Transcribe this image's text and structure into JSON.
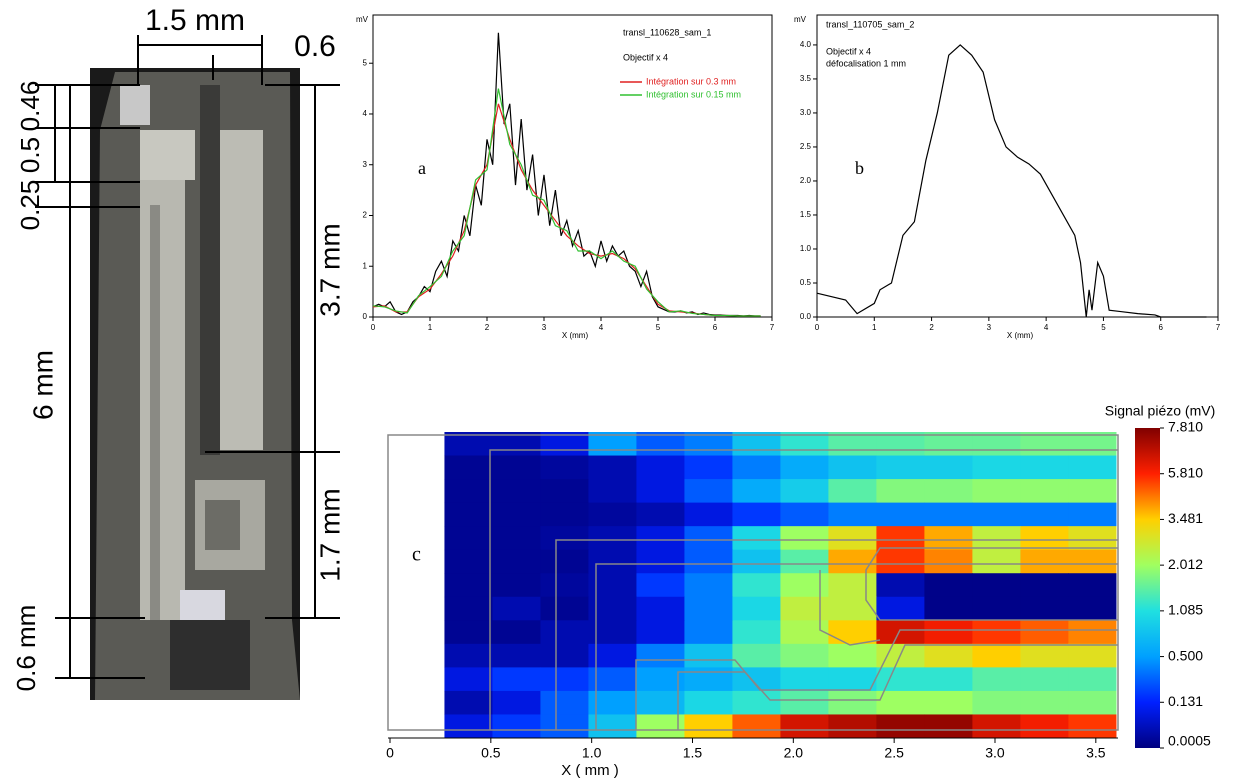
{
  "photo": {
    "labels": [
      "1.5 mm",
      "0.6",
      "0.46",
      "0.5",
      "0.25",
      "3.7 mm",
      "6 mm",
      "1.7 mm",
      "0.6 mm"
    ]
  },
  "chart_data": [
    {
      "type": "line",
      "y_label": "mV",
      "x_label": "X (mm)",
      "annotations": [
        "transl_110628_sam_1",
        "Objectif x 4",
        "a"
      ],
      "xlim": [
        0,
        7
      ],
      "xticks": [
        0,
        1,
        2,
        3,
        4,
        5,
        6,
        7
      ],
      "ylim": [
        0,
        5.95
      ],
      "yticks": [
        0,
        1,
        2,
        3,
        4,
        5
      ],
      "series": [
        {
          "color": "#000000",
          "x": [
            0,
            0.1,
            0.2,
            0.3,
            0.4,
            0.5,
            0.6,
            0.7,
            0.8,
            0.9,
            1.0,
            1.1,
            1.2,
            1.3,
            1.4,
            1.5,
            1.6,
            1.7,
            1.8,
            1.9,
            2.0,
            2.1,
            2.2,
            2.3,
            2.4,
            2.5,
            2.6,
            2.7,
            2.8,
            2.9,
            3.0,
            3.1,
            3.2,
            3.3,
            3.4,
            3.5,
            3.6,
            3.7,
            3.8,
            3.9,
            4.0,
            4.1,
            4.2,
            4.3,
            4.4,
            4.5,
            4.6,
            4.7,
            4.8,
            4.9,
            5.0,
            5.1,
            5.2,
            5.3,
            5.4,
            5.5,
            5.6,
            5.7,
            5.8,
            5.9,
            6.0,
            6.1,
            6.2,
            6.3,
            6.4,
            6.5,
            6.6,
            6.7,
            6.8
          ],
          "values": [
            0.2,
            0.25,
            0.2,
            0.3,
            0.1,
            0.05,
            0.1,
            0.3,
            0.4,
            0.6,
            0.5,
            0.9,
            1.1,
            0.8,
            1.5,
            1.3,
            2.0,
            1.6,
            2.6,
            2.2,
            3.5,
            3.0,
            5.6,
            3.8,
            4.2,
            2.6,
            3.9,
            2.5,
            3.2,
            2.0,
            2.8,
            1.8,
            2.5,
            1.6,
            1.9,
            1.4,
            1.7,
            1.2,
            1.3,
            1.0,
            1.5,
            1.1,
            1.4,
            1.2,
            1.3,
            1.0,
            0.9,
            0.6,
            0.9,
            0.4,
            0.2,
            0.15,
            0.1,
            0.1,
            0.12,
            0.08,
            0.1,
            0.05,
            0.08,
            0.05,
            0.04,
            0.04,
            0.03,
            0.03,
            0.03,
            0.02,
            0.03,
            0.02,
            0.02
          ]
        },
        {
          "name": "Intégration sur 0.3 mm",
          "color": "#e02020",
          "x": [
            0,
            0.2,
            0.4,
            0.6,
            0.8,
            1.0,
            1.2,
            1.4,
            1.6,
            1.8,
            2.0,
            2.2,
            2.4,
            2.6,
            2.8,
            3.0,
            3.2,
            3.4,
            3.6,
            3.8,
            4.0,
            4.2,
            4.4,
            4.6,
            4.8,
            5.0,
            5.2,
            5.4,
            5.6,
            5.8,
            6.0,
            6.2,
            6.4,
            6.6,
            6.8
          ],
          "values": [
            0.2,
            0.22,
            0.1,
            0.1,
            0.4,
            0.55,
            0.85,
            1.2,
            1.7,
            2.6,
            3.0,
            4.2,
            3.5,
            2.9,
            2.5,
            2.2,
            1.9,
            1.6,
            1.4,
            1.25,
            1.2,
            1.25,
            1.15,
            0.95,
            0.6,
            0.25,
            0.12,
            0.1,
            0.08,
            0.05,
            0.03,
            0.03,
            0.02,
            0.02,
            0.02
          ]
        },
        {
          "name": "Intégration sur 0.15 mm",
          "color": "#30c030",
          "x": [
            0,
            0.2,
            0.4,
            0.6,
            0.8,
            1.0,
            1.2,
            1.4,
            1.6,
            1.8,
            2.0,
            2.2,
            2.4,
            2.6,
            2.8,
            3.0,
            3.2,
            3.4,
            3.6,
            3.8,
            4.0,
            4.2,
            4.4,
            4.6,
            4.8,
            5.0,
            5.2,
            5.4,
            5.6,
            5.8,
            6.0,
            6.2,
            6.4,
            6.6,
            6.8
          ],
          "values": [
            0.22,
            0.2,
            0.12,
            0.08,
            0.42,
            0.6,
            0.8,
            1.3,
            1.6,
            2.7,
            2.9,
            4.5,
            3.4,
            3.0,
            2.4,
            2.3,
            1.8,
            1.7,
            1.3,
            1.3,
            1.15,
            1.3,
            1.1,
            1.0,
            0.55,
            0.3,
            0.1,
            0.12,
            0.07,
            0.05,
            0.03,
            0.03,
            0.02,
            0.02,
            0.02
          ]
        }
      ]
    },
    {
      "type": "line",
      "y_label": "mV",
      "x_label": "X (mm)",
      "annotations": [
        "transl_110705_sam_2",
        "Objectif x 4",
        "défocalisation 1 mm",
        "b"
      ],
      "xlim": [
        0,
        7
      ],
      "xticks": [
        0,
        1,
        2,
        3,
        4,
        5,
        6,
        7
      ],
      "ylim": [
        0,
        4.44
      ],
      "yticks": [
        {
          "value": 0,
          "label": "0.0"
        },
        0.5,
        {
          "value": 1,
          "label": "1.0"
        },
        1.5,
        {
          "value": 2,
          "label": "2.0"
        },
        2.5,
        {
          "value": 3,
          "label": "3.0"
        },
        3.5,
        {
          "value": 4,
          "label": "4.0"
        }
      ],
      "series": [
        {
          "color": "#000000",
          "x": [
            0,
            0.5,
            0.7,
            1.0,
            1.1,
            1.3,
            1.5,
            1.7,
            1.9,
            2.1,
            2.3,
            2.5,
            2.7,
            2.9,
            3.1,
            3.3,
            3.5,
            3.7,
            3.9,
            4.1,
            4.3,
            4.5,
            4.6,
            4.7,
            4.75,
            4.8,
            4.9,
            5.0,
            5.1,
            5.3,
            5.6,
            5.9,
            6.0,
            6.5,
            6.8
          ],
          "values": [
            0.35,
            0.25,
            0.05,
            0.2,
            0.4,
            0.5,
            1.2,
            1.4,
            2.3,
            3.0,
            3.85,
            4.0,
            3.85,
            3.6,
            2.9,
            2.5,
            2.35,
            2.25,
            2.1,
            1.8,
            1.5,
            1.2,
            0.8,
            0.0,
            0.4,
            0.1,
            0.8,
            0.6,
            0.1,
            0.08,
            0.05,
            0.03,
            0.0,
            0.0,
            0.0
          ]
        }
      ]
    },
    {
      "type": "heatmap",
      "title": "Signal piézo (mV)",
      "x_label": "X ( mm )",
      "annotations": [
        "c"
      ],
      "xlim": [
        0,
        3.61
      ],
      "xticks": [
        0,
        0.5,
        {
          "value": 1,
          "label": "1.0"
        },
        1.5,
        {
          "value": 2,
          "label": "2.0"
        },
        2.5,
        {
          "value": 3,
          "label": "3.0"
        },
        3.5
      ],
      "xbins": [
        0.27,
        0.508,
        0.746,
        0.984,
        1.222,
        1.46,
        1.698,
        1.936,
        2.174,
        2.412,
        2.65,
        2.888,
        3.126,
        3.364,
        3.6
      ],
      "zticks": [
        0.0005,
        0.131,
        {
          "value": 0.5,
          "label": "0.500"
        },
        1.085,
        2.012,
        3.481,
        {
          "value": 5.81,
          "label": "5.810"
        },
        {
          "value": 7.81,
          "label": "7.810"
        }
      ],
      "colormap": [
        "#000080",
        "#0020ff",
        "#00a0ff",
        "#20e0e0",
        "#a0ff60",
        "#ffd000",
        "#ff2000",
        "#800000"
      ],
      "z": [
        [
          0.05,
          0.05,
          0.1,
          0.5,
          0.3,
          0.4,
          0.8,
          1.2,
          1.5,
          1.5,
          1.6,
          1.6,
          1.7,
          1.7
        ],
        [
          0.02,
          0.02,
          0.03,
          0.05,
          0.1,
          0.2,
          0.4,
          0.6,
          0.8,
          0.9,
          0.9,
          1.0,
          1.0,
          1.0
        ],
        [
          0.02,
          0.02,
          0.02,
          0.05,
          0.1,
          0.3,
          0.6,
          0.9,
          1.5,
          1.8,
          1.8,
          1.9,
          1.9,
          1.9
        ],
        [
          0.02,
          0.02,
          0.02,
          0.03,
          0.05,
          0.1,
          0.2,
          0.3,
          0.4,
          0.4,
          0.4,
          0.4,
          0.4,
          0.4
        ],
        [
          0.02,
          0.02,
          0.03,
          0.05,
          0.1,
          0.3,
          1.0,
          2.0,
          3.0,
          5.5,
          4.0,
          2.5,
          3.5,
          3.0
        ],
        [
          0.02,
          0.02,
          0.02,
          0.05,
          0.1,
          0.3,
          0.8,
          1.5,
          4.0,
          5.5,
          4.5,
          2.5,
          4.0,
          4.0
        ],
        [
          0.02,
          0.02,
          0.03,
          0.05,
          0.2,
          0.4,
          1.2,
          2.0,
          2.5,
          0.05,
          0.01,
          0.01,
          0.01,
          0.01
        ],
        [
          0.02,
          0.05,
          0.02,
          0.05,
          0.1,
          0.4,
          1.0,
          2.5,
          2.5,
          0.1,
          0.01,
          0.01,
          0.01,
          0.01
        ],
        [
          0.02,
          0.02,
          0.05,
          0.05,
          0.1,
          0.4,
          1.2,
          2.2,
          3.5,
          6.5,
          6.0,
          5.5,
          5.0,
          4.5
        ],
        [
          0.05,
          0.05,
          0.05,
          0.1,
          0.4,
          0.8,
          1.5,
          1.8,
          2.0,
          2.5,
          3.0,
          3.5,
          3.0,
          3.0
        ],
        [
          0.1,
          0.2,
          0.2,
          0.3,
          0.5,
          0.6,
          0.8,
          1.0,
          1.0,
          1.2,
          1.2,
          1.5,
          1.5,
          1.5
        ],
        [
          0.05,
          0.1,
          0.3,
          0.5,
          0.7,
          1.0,
          1.2,
          1.5,
          1.8,
          2.0,
          2.0,
          1.8,
          1.8,
          1.8
        ],
        [
          0.1,
          0.2,
          0.3,
          0.8,
          2.0,
          3.5,
          5.0,
          6.5,
          7.0,
          7.5,
          7.5,
          6.5,
          6.0,
          5.5
        ]
      ]
    }
  ]
}
